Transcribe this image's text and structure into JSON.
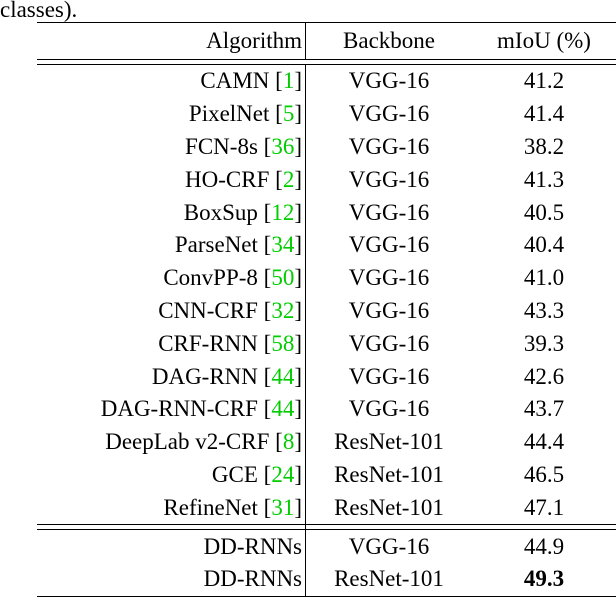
{
  "caption_tail": "classes).",
  "header": {
    "algorithm": "Algorithm",
    "backbone": "Backbone",
    "miou": "mIoU (%)"
  },
  "rows": [
    {
      "name": "CAMN ",
      "cite": "1",
      "backbone": "VGG-16",
      "miou": "41.2"
    },
    {
      "name": "PixelNet ",
      "cite": "5",
      "backbone": "VGG-16",
      "miou": "41.4"
    },
    {
      "name": "FCN-8s ",
      "cite": "36",
      "backbone": "VGG-16",
      "miou": "38.2"
    },
    {
      "name": "HO-CRF ",
      "cite": "2",
      "backbone": "VGG-16",
      "miou": "41.3"
    },
    {
      "name": "BoxSup ",
      "cite": "12",
      "backbone": "VGG-16",
      "miou": "40.5"
    },
    {
      "name": "ParseNet ",
      "cite": "34",
      "backbone": "VGG-16",
      "miou": "40.4"
    },
    {
      "name": "ConvPP-8 ",
      "cite": "50",
      "backbone": "VGG-16",
      "miou": "41.0"
    },
    {
      "name": "CNN-CRF ",
      "cite": "32",
      "backbone": "VGG-16",
      "miou": "43.3"
    },
    {
      "name": "CRF-RNN ",
      "cite": "58",
      "backbone": "VGG-16",
      "miou": "39.3"
    },
    {
      "name": "DAG-RNN ",
      "cite": "44",
      "backbone": "VGG-16",
      "miou": "42.6"
    },
    {
      "name": "DAG-RNN-CRF ",
      "cite": "44",
      "backbone": "VGG-16",
      "miou": "43.7"
    },
    {
      "name": "DeepLab v2-CRF ",
      "cite": "8",
      "backbone": "ResNet-101",
      "miou": "44.4"
    },
    {
      "name": "GCE ",
      "cite": "24",
      "backbone": "ResNet-101",
      "miou": "46.5"
    },
    {
      "name": "RefineNet ",
      "cite": "31",
      "backbone": "ResNet-101",
      "miou": "47.1"
    }
  ],
  "ours": [
    {
      "name": "DD-RNNs",
      "backbone": "VGG-16",
      "miou": "44.9",
      "bold": false
    },
    {
      "name": "DD-RNNs",
      "backbone": "ResNet-101",
      "miou": "49.3",
      "bold": true
    }
  ]
}
